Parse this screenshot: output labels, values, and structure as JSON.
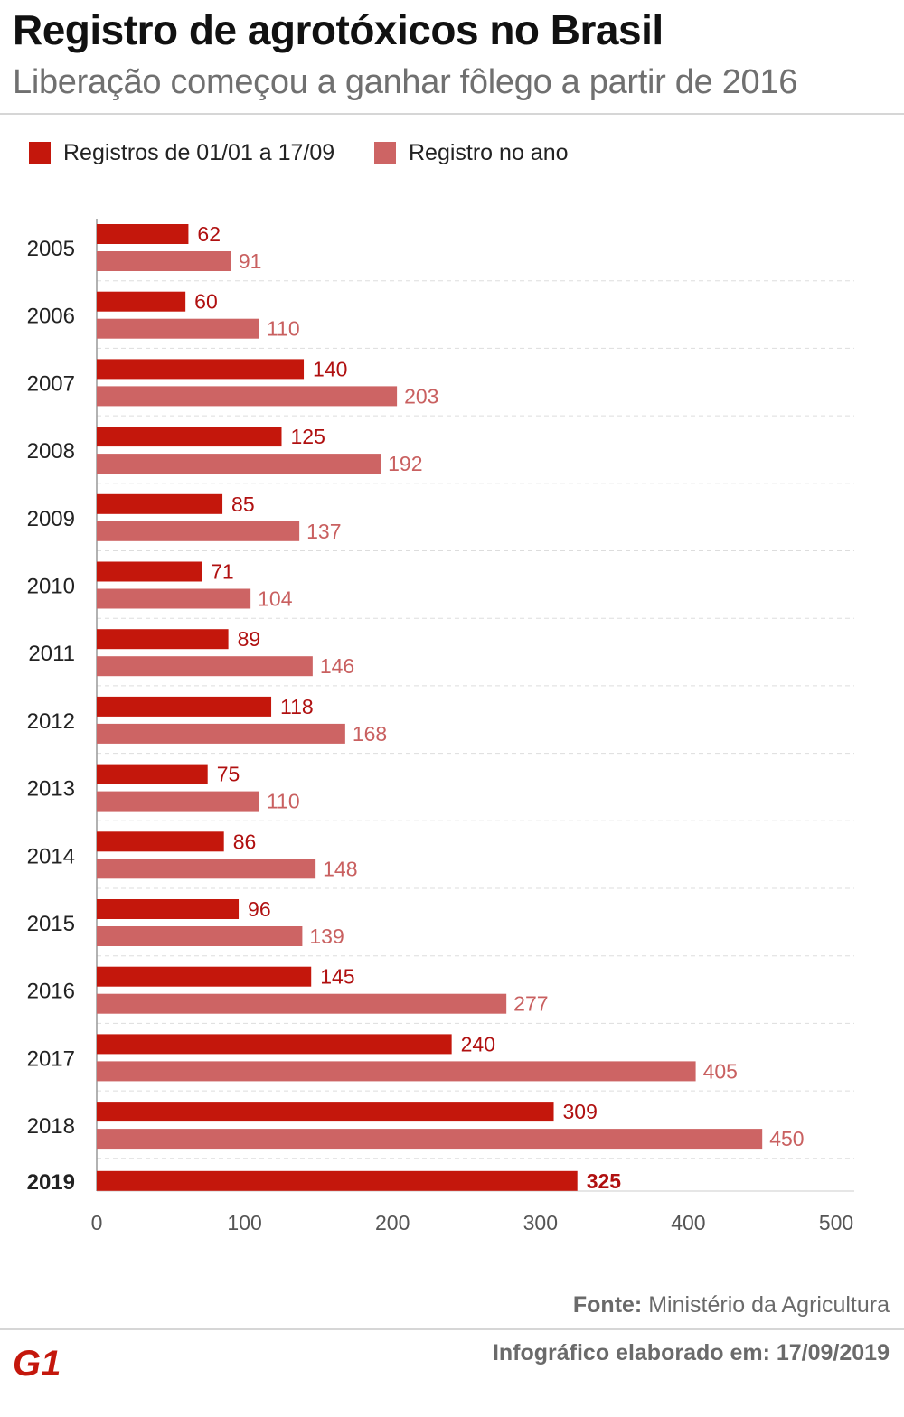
{
  "header": {
    "title": "Registro de agrotóxicos no Brasil",
    "subtitle": "Liberação começou a ganhar fôlego a partir de 2016"
  },
  "colors": {
    "series_partial": "#c4170c",
    "series_full": "#cd6464",
    "label_partial": "#b01010",
    "label_full": "#c96060",
    "grid": "#dddddd",
    "axis": "#999999"
  },
  "chart_data": {
    "type": "bar",
    "orientation": "horizontal",
    "title": "Registro de agrotóxicos no Brasil",
    "subtitle": "Liberação começou a ganhar fôlego a partir de 2016",
    "xlabel": "",
    "ylabel": "",
    "xlim": [
      0,
      500
    ],
    "xticks": [
      0,
      100,
      200,
      300,
      400,
      500
    ],
    "grid": true,
    "legend_position": "top-left",
    "categories": [
      "2005",
      "2006",
      "2007",
      "2008",
      "2009",
      "2010",
      "2011",
      "2012",
      "2013",
      "2014",
      "2015",
      "2016",
      "2017",
      "2018",
      "2019"
    ],
    "series": [
      {
        "name": "Registros de 01/01 a 17/09",
        "values": [
          62,
          60,
          140,
          125,
          85,
          71,
          89,
          118,
          75,
          86,
          96,
          145,
          240,
          309,
          325
        ]
      },
      {
        "name": "Registro no ano",
        "values": [
          91,
          110,
          203,
          192,
          137,
          104,
          146,
          168,
          110,
          148,
          139,
          277,
          405,
          450,
          null
        ]
      }
    ],
    "highlight_category": "2019"
  },
  "footer": {
    "source_label": "Fonte:",
    "source_value": "Ministério da Agricultura",
    "credit": "Infográfico elaborado em: 17/09/2019",
    "logo_text": "G1"
  }
}
